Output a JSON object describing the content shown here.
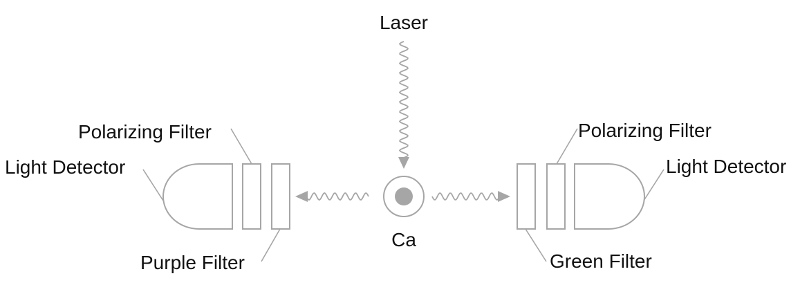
{
  "labels": {
    "laser": "Laser",
    "atom": "Ca",
    "left": {
      "polarizing_filter": "Polarizing Filter",
      "light_detector": "Light Detector",
      "color_filter": "Purple Filter"
    },
    "right": {
      "polarizing_filter": "Polarizing Filter",
      "light_detector": "Light Detector",
      "color_filter": "Green Filter"
    }
  },
  "colors": {
    "stroke": "#a6a6a6",
    "text": "#111111",
    "atom_fill": "#a6a6a6"
  }
}
